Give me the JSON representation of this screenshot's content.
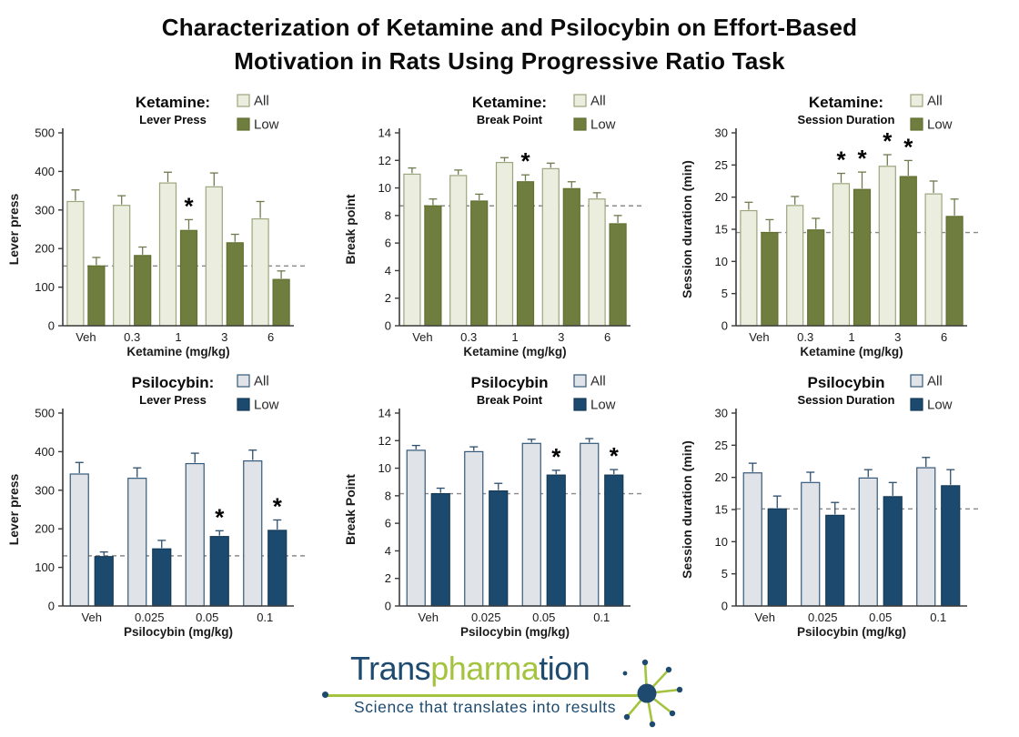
{
  "page_title": {
    "line1": "Characterization of Ketamine and Psilocybin on Effort-Based",
    "line2": "Motivation in Rats Using Progressive Ratio Task"
  },
  "colors": {
    "dashed_line": "#8a8a8a",
    "axis": "#3c3c3c",
    "text": "#1a1a1a",
    "significance": "#000000",
    "ketamine": {
      "all_fill": "#ebeedf",
      "all_border": "#9ba67d",
      "low_fill": "#6f7e3f",
      "low_border": "#61702f",
      "error": "#6e7b4e"
    },
    "psilocybin": {
      "all_fill": "#e0e3e7",
      "all_border": "#34597a",
      "low_fill": "#1c4a6e",
      "low_border": "#143a58",
      "error": "#2c4e6d"
    }
  },
  "chart_data": [
    {
      "id": "ketamine-lever-press",
      "type": "bar",
      "title": "Ketamine:",
      "subtitle": "Lever Press",
      "ylabel": "Lever press",
      "xlabel": "Ketamine (mg/kg)",
      "ylim": [
        0,
        500
      ],
      "ystep": 100,
      "categories": [
        "Veh",
        "0.3",
        "1",
        "3",
        "6"
      ],
      "legend_position": "top-right",
      "palette": "ketamine",
      "dashed_line_y": 155,
      "series": [
        {
          "name": "All",
          "values": [
            322,
            312,
            370,
            360,
            277
          ],
          "errors": [
            30,
            25,
            28,
            36,
            45
          ],
          "significant": [
            false,
            false,
            false,
            false,
            false
          ]
        },
        {
          "name": "Low",
          "values": [
            155,
            182,
            247,
            215,
            120
          ],
          "errors": [
            22,
            22,
            28,
            22,
            22
          ],
          "significant": [
            false,
            false,
            true,
            false,
            false
          ]
        }
      ]
    },
    {
      "id": "ketamine-break-point",
      "type": "bar",
      "title": "Ketamine:",
      "subtitle": "Break Point",
      "ylabel": "Break point",
      "xlabel": "Ketamine (mg/kg)",
      "ylim": [
        0,
        14
      ],
      "ystep": 2,
      "categories": [
        "Veh",
        "0.3",
        "1",
        "3",
        "6"
      ],
      "legend_position": "top-right",
      "palette": "ketamine",
      "dashed_line_y": 8.7,
      "series": [
        {
          "name": "All",
          "values": [
            11.0,
            10.9,
            11.85,
            11.4,
            9.2
          ],
          "errors": [
            0.45,
            0.4,
            0.35,
            0.4,
            0.45
          ],
          "significant": [
            false,
            false,
            false,
            false,
            false
          ]
        },
        {
          "name": "Low",
          "values": [
            8.7,
            9.05,
            10.45,
            9.95,
            7.4
          ],
          "errors": [
            0.5,
            0.5,
            0.5,
            0.5,
            0.6
          ],
          "significant": [
            false,
            false,
            true,
            false,
            false
          ]
        }
      ]
    },
    {
      "id": "ketamine-session-duration",
      "type": "bar",
      "title": "Ketamine:",
      "subtitle": "Session Duration",
      "ylabel": "Session duration (min)",
      "xlabel": "Ketamine (mg/kg)",
      "ylim": [
        0,
        30
      ],
      "ystep": 5,
      "categories": [
        "Veh",
        "0.3",
        "1",
        "3",
        "6"
      ],
      "legend_position": "top-right",
      "palette": "ketamine",
      "dashed_line_y": 14.5,
      "series": [
        {
          "name": "All",
          "values": [
            17.9,
            18.7,
            22.1,
            24.8,
            20.5
          ],
          "errors": [
            1.3,
            1.4,
            1.6,
            1.8,
            2.0
          ],
          "significant": [
            false,
            false,
            true,
            true,
            false
          ]
        },
        {
          "name": "Low",
          "values": [
            14.5,
            14.9,
            21.2,
            23.2,
            17.0
          ],
          "errors": [
            2.0,
            1.8,
            2.7,
            2.5,
            2.7
          ],
          "significant": [
            false,
            false,
            true,
            true,
            false
          ]
        }
      ]
    },
    {
      "id": "psilocybin-lever-press",
      "type": "bar",
      "title": "Psilocybin:",
      "subtitle": "Lever Press",
      "ylabel": "Lever press",
      "xlabel": "Psilocybin (mg/kg)",
      "ylim": [
        0,
        500
      ],
      "ystep": 100,
      "categories": [
        "Veh",
        "0.025",
        "0.05",
        "0.1"
      ],
      "legend_position": "top-right",
      "palette": "psilocybin",
      "dashed_line_y": 130,
      "series": [
        {
          "name": "All",
          "values": [
            342,
            331,
            369,
            376
          ],
          "errors": [
            30,
            27,
            27,
            28
          ],
          "significant": [
            false,
            false,
            false,
            false
          ]
        },
        {
          "name": "Low",
          "values": [
            128,
            148,
            180,
            196
          ],
          "errors": [
            12,
            22,
            15,
            27
          ],
          "significant": [
            false,
            false,
            true,
            true
          ]
        }
      ]
    },
    {
      "id": "psilocybin-break-point",
      "type": "bar",
      "title": "Psilocybin",
      "subtitle": "Break Point",
      "ylabel": "Break Point",
      "xlabel": "Psilocybin (mg/kg)",
      "ylim": [
        0,
        14
      ],
      "ystep": 2,
      "categories": [
        "Veh",
        "0.025",
        "0.05",
        "0.1"
      ],
      "legend_position": "top-right",
      "palette": "psilocybin",
      "dashed_line_y": 8.15,
      "series": [
        {
          "name": "All",
          "values": [
            11.3,
            11.2,
            11.8,
            11.8
          ],
          "errors": [
            0.35,
            0.35,
            0.3,
            0.35
          ],
          "significant": [
            false,
            false,
            false,
            false
          ]
        },
        {
          "name": "Low",
          "values": [
            8.15,
            8.35,
            9.5,
            9.5
          ],
          "errors": [
            0.4,
            0.55,
            0.35,
            0.4
          ],
          "significant": [
            false,
            false,
            true,
            true
          ]
        }
      ]
    },
    {
      "id": "psilocybin-session-duration",
      "type": "bar",
      "title": "Psilocybin",
      "subtitle": "Session Duration",
      "ylabel": "Session duration (min)",
      "xlabel": "Psilocybin (mg/kg)",
      "ylim": [
        0,
        30
      ],
      "ystep": 5,
      "categories": [
        "Veh",
        "0.025",
        "0.05",
        "0.1"
      ],
      "legend_position": "top-right",
      "palette": "psilocybin",
      "dashed_line_y": 15.1,
      "series": [
        {
          "name": "All",
          "values": [
            20.7,
            19.2,
            19.9,
            21.5
          ],
          "errors": [
            1.5,
            1.6,
            1.3,
            1.6
          ],
          "significant": [
            false,
            false,
            false,
            false
          ]
        },
        {
          "name": "Low",
          "values": [
            15.1,
            14.1,
            17.0,
            18.7
          ],
          "errors": [
            2.0,
            2.0,
            2.2,
            2.5
          ],
          "significant": [
            false,
            false,
            false,
            false
          ]
        }
      ]
    }
  ],
  "logo": {
    "word_part1": "Trans",
    "word_part2": "pharma",
    "word_part3": "tion",
    "tagline": "Science that translates into results",
    "navy": "#1d4a6e",
    "green": "#a4c33f"
  }
}
